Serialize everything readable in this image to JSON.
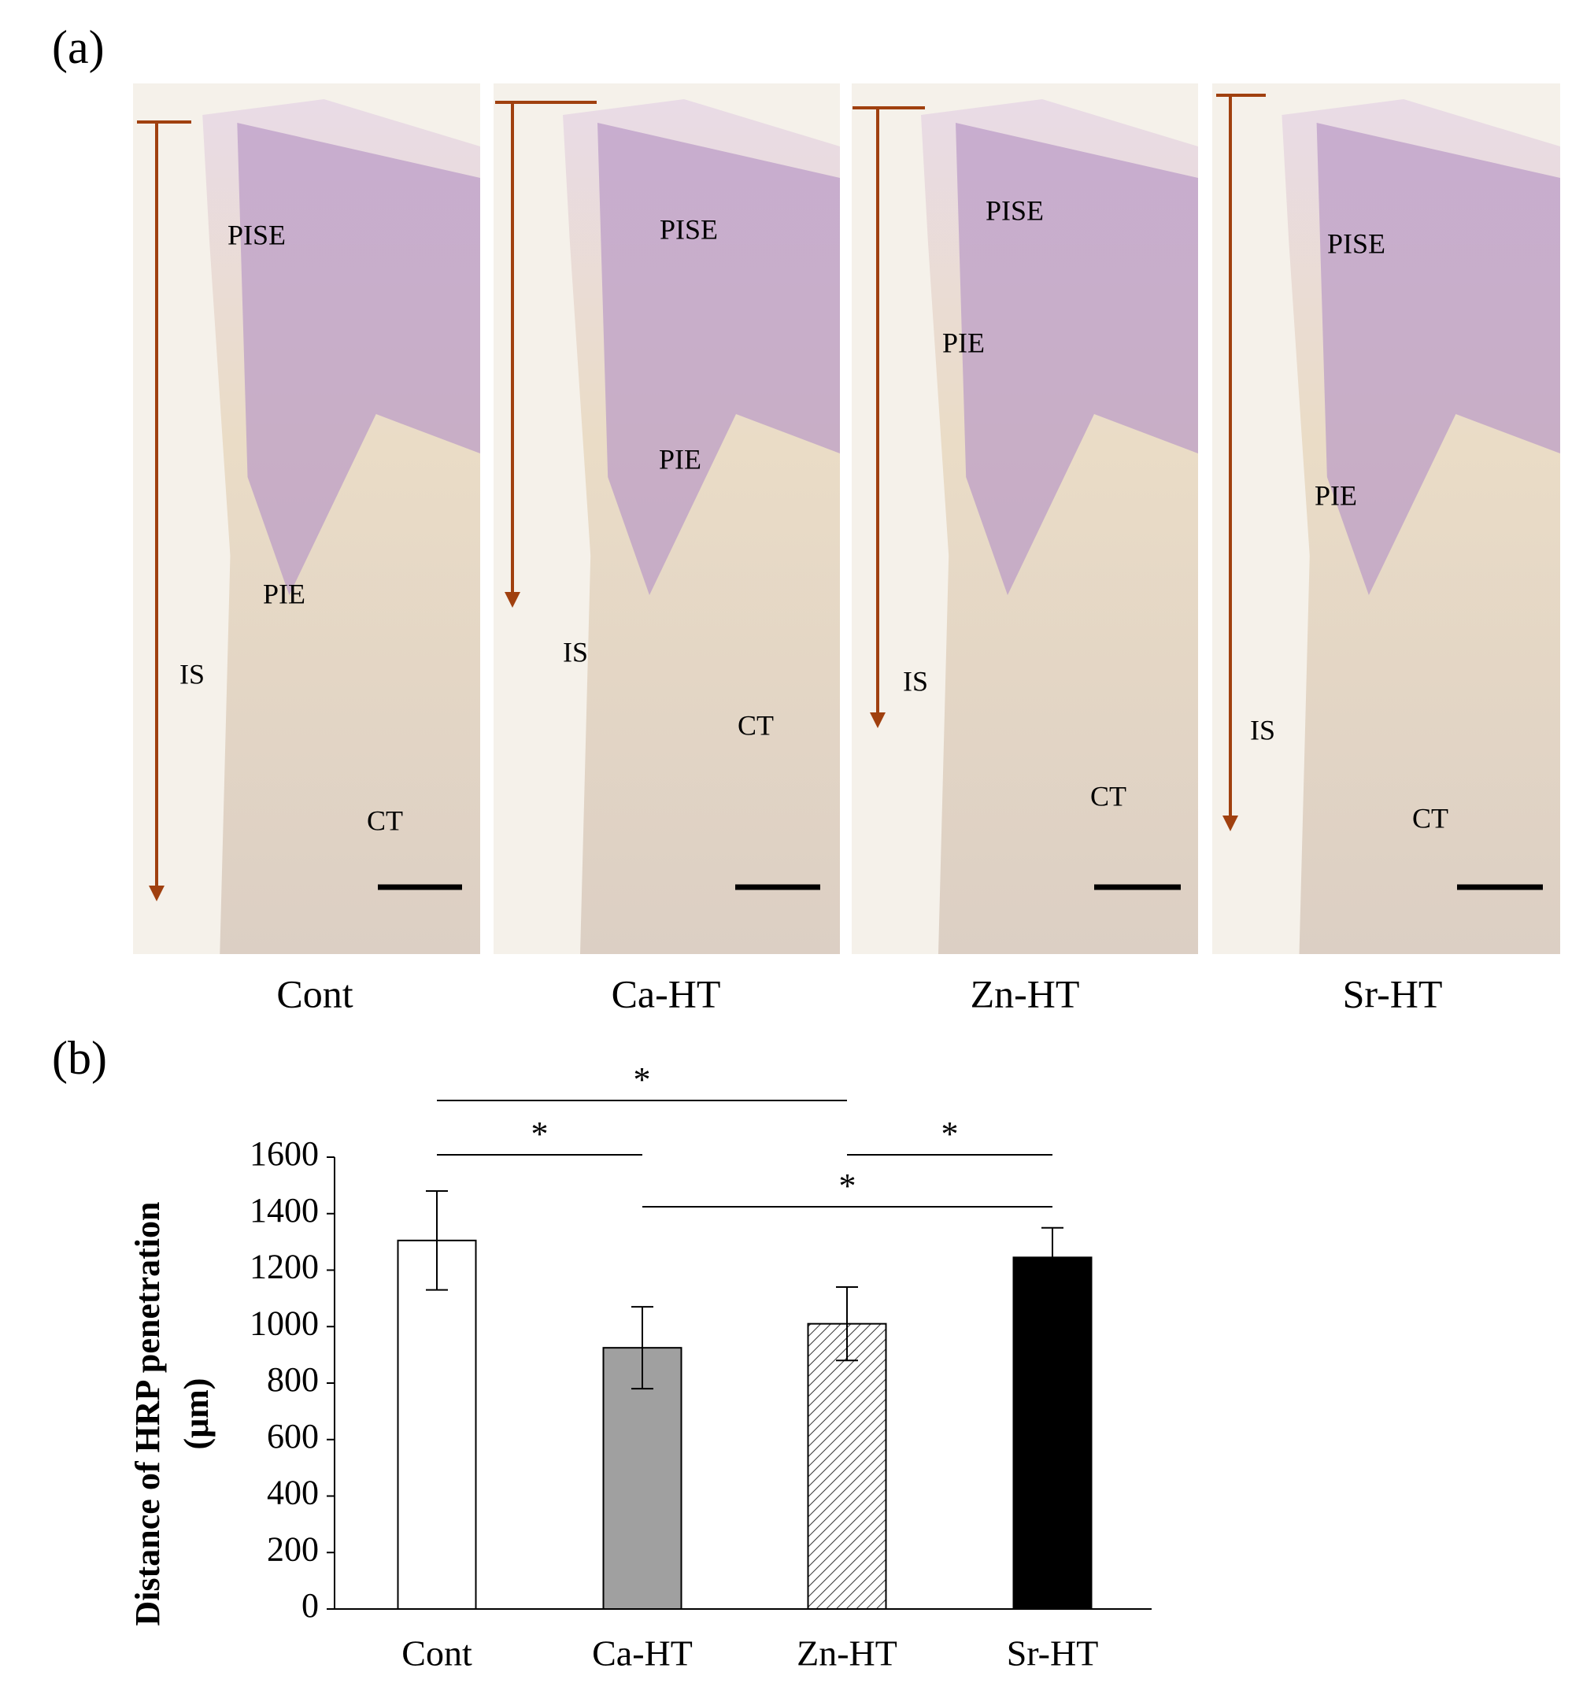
{
  "figure_a": {
    "label": "(a)",
    "panels": [
      {
        "caption": "Cont",
        "labels": [
          "PISE",
          "PIE",
          "IS",
          "CT"
        ]
      },
      {
        "caption": "Ca-HT",
        "labels": [
          "PISE",
          "PIE",
          "IS",
          "CT"
        ]
      },
      {
        "caption": "Zn-HT",
        "labels": [
          "PISE",
          "PIE",
          "IS",
          "CT"
        ]
      },
      {
        "caption": "Sr-HT",
        "labels": [
          "PISE",
          "PIE",
          "IS",
          "CT"
        ]
      }
    ]
  },
  "figure_b_label": "(b)",
  "chart_data": {
    "type": "bar",
    "y_label": [
      "Distance of HRP penetration",
      "(μm)"
    ],
    "categories": [
      "Cont",
      "Ca-HT",
      "Zn-HT",
      "Sr-HT"
    ],
    "values": [
      1305,
      925,
      1010,
      1245
    ],
    "errors": [
      175,
      145,
      130,
      105
    ],
    "colors": [
      "#ffffff",
      "#a0a0a0",
      "hatch",
      "#000000"
    ],
    "ylim": [
      0,
      1600
    ],
    "yticks": [
      0,
      200,
      400,
      600,
      800,
      1000,
      1200,
      1400,
      1600
    ],
    "significance": [
      {
        "pair": [
          0,
          2
        ],
        "label": "*"
      },
      {
        "pair": [
          0,
          1
        ],
        "label": "*"
      },
      {
        "pair": [
          2,
          3
        ],
        "label": "*"
      },
      {
        "pair": [
          1,
          3
        ],
        "label": "*"
      }
    ]
  }
}
